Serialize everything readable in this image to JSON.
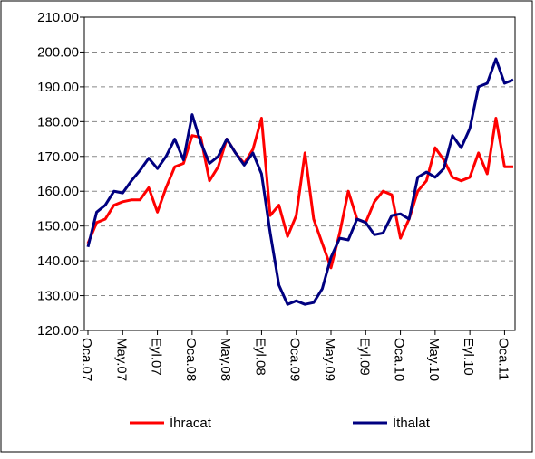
{
  "chart_data": {
    "type": "line",
    "categories": [
      "Oca.07",
      null,
      null,
      null,
      "May.07",
      null,
      null,
      null,
      "Eyl.07",
      null,
      null,
      null,
      "Oca.08",
      null,
      null,
      null,
      "May.08",
      null,
      null,
      null,
      "Eyl.08",
      null,
      null,
      null,
      "Oca.09",
      null,
      null,
      null,
      "May.09",
      null,
      null,
      null,
      "Eyl.09",
      null,
      null,
      null,
      "Oca.10",
      null,
      null,
      null,
      "May.10",
      null,
      null,
      null,
      "Eyl.10",
      null,
      null,
      null,
      "Oca.11",
      null
    ],
    "series": [
      {
        "name": "İhracat",
        "color": "#ff0000",
        "values": [
          145,
          151,
          152,
          156,
          157,
          157.5,
          157.5,
          161,
          154,
          161,
          167,
          168,
          176,
          175.5,
          163,
          167,
          175,
          171,
          168,
          172,
          181,
          153,
          156,
          147,
          153,
          171,
          152,
          145,
          138,
          148,
          160,
          152,
          151,
          157,
          160,
          159,
          146.5,
          152,
          160,
          163,
          172.5,
          169,
          164,
          163,
          164,
          171,
          165,
          181,
          167,
          167
        ]
      },
      {
        "name": "İthalat",
        "color": "#000080",
        "values": [
          144,
          154,
          156,
          160,
          159.5,
          163,
          166,
          169.5,
          166.5,
          170,
          175,
          169,
          182,
          174,
          168,
          170,
          175,
          171,
          167.5,
          171,
          165,
          148,
          133,
          127.5,
          128.5,
          127.5,
          128,
          132,
          141,
          146.5,
          146,
          152,
          151,
          147.5,
          148,
          153,
          153.5,
          152,
          164,
          165.5,
          164,
          166.5,
          176,
          172.5,
          178,
          190,
          191,
          198,
          191,
          192
        ]
      }
    ],
    "ylim": [
      120,
      210
    ],
    "yticks": [
      {
        "value": 120,
        "label": "120.00"
      },
      {
        "value": 130,
        "label": "130.00"
      },
      {
        "value": 140,
        "label": "140.00"
      },
      {
        "value": 150,
        "label": "150.00"
      },
      {
        "value": 160,
        "label": "160.00"
      },
      {
        "value": 170,
        "label": "170.00"
      },
      {
        "value": 180,
        "label": "180.00"
      },
      {
        "value": 190,
        "label": "190.00"
      },
      {
        "value": 200,
        "label": "200.00"
      },
      {
        "value": 210,
        "label": "210.00"
      }
    ],
    "grid": true,
    "legend": "bottom"
  }
}
